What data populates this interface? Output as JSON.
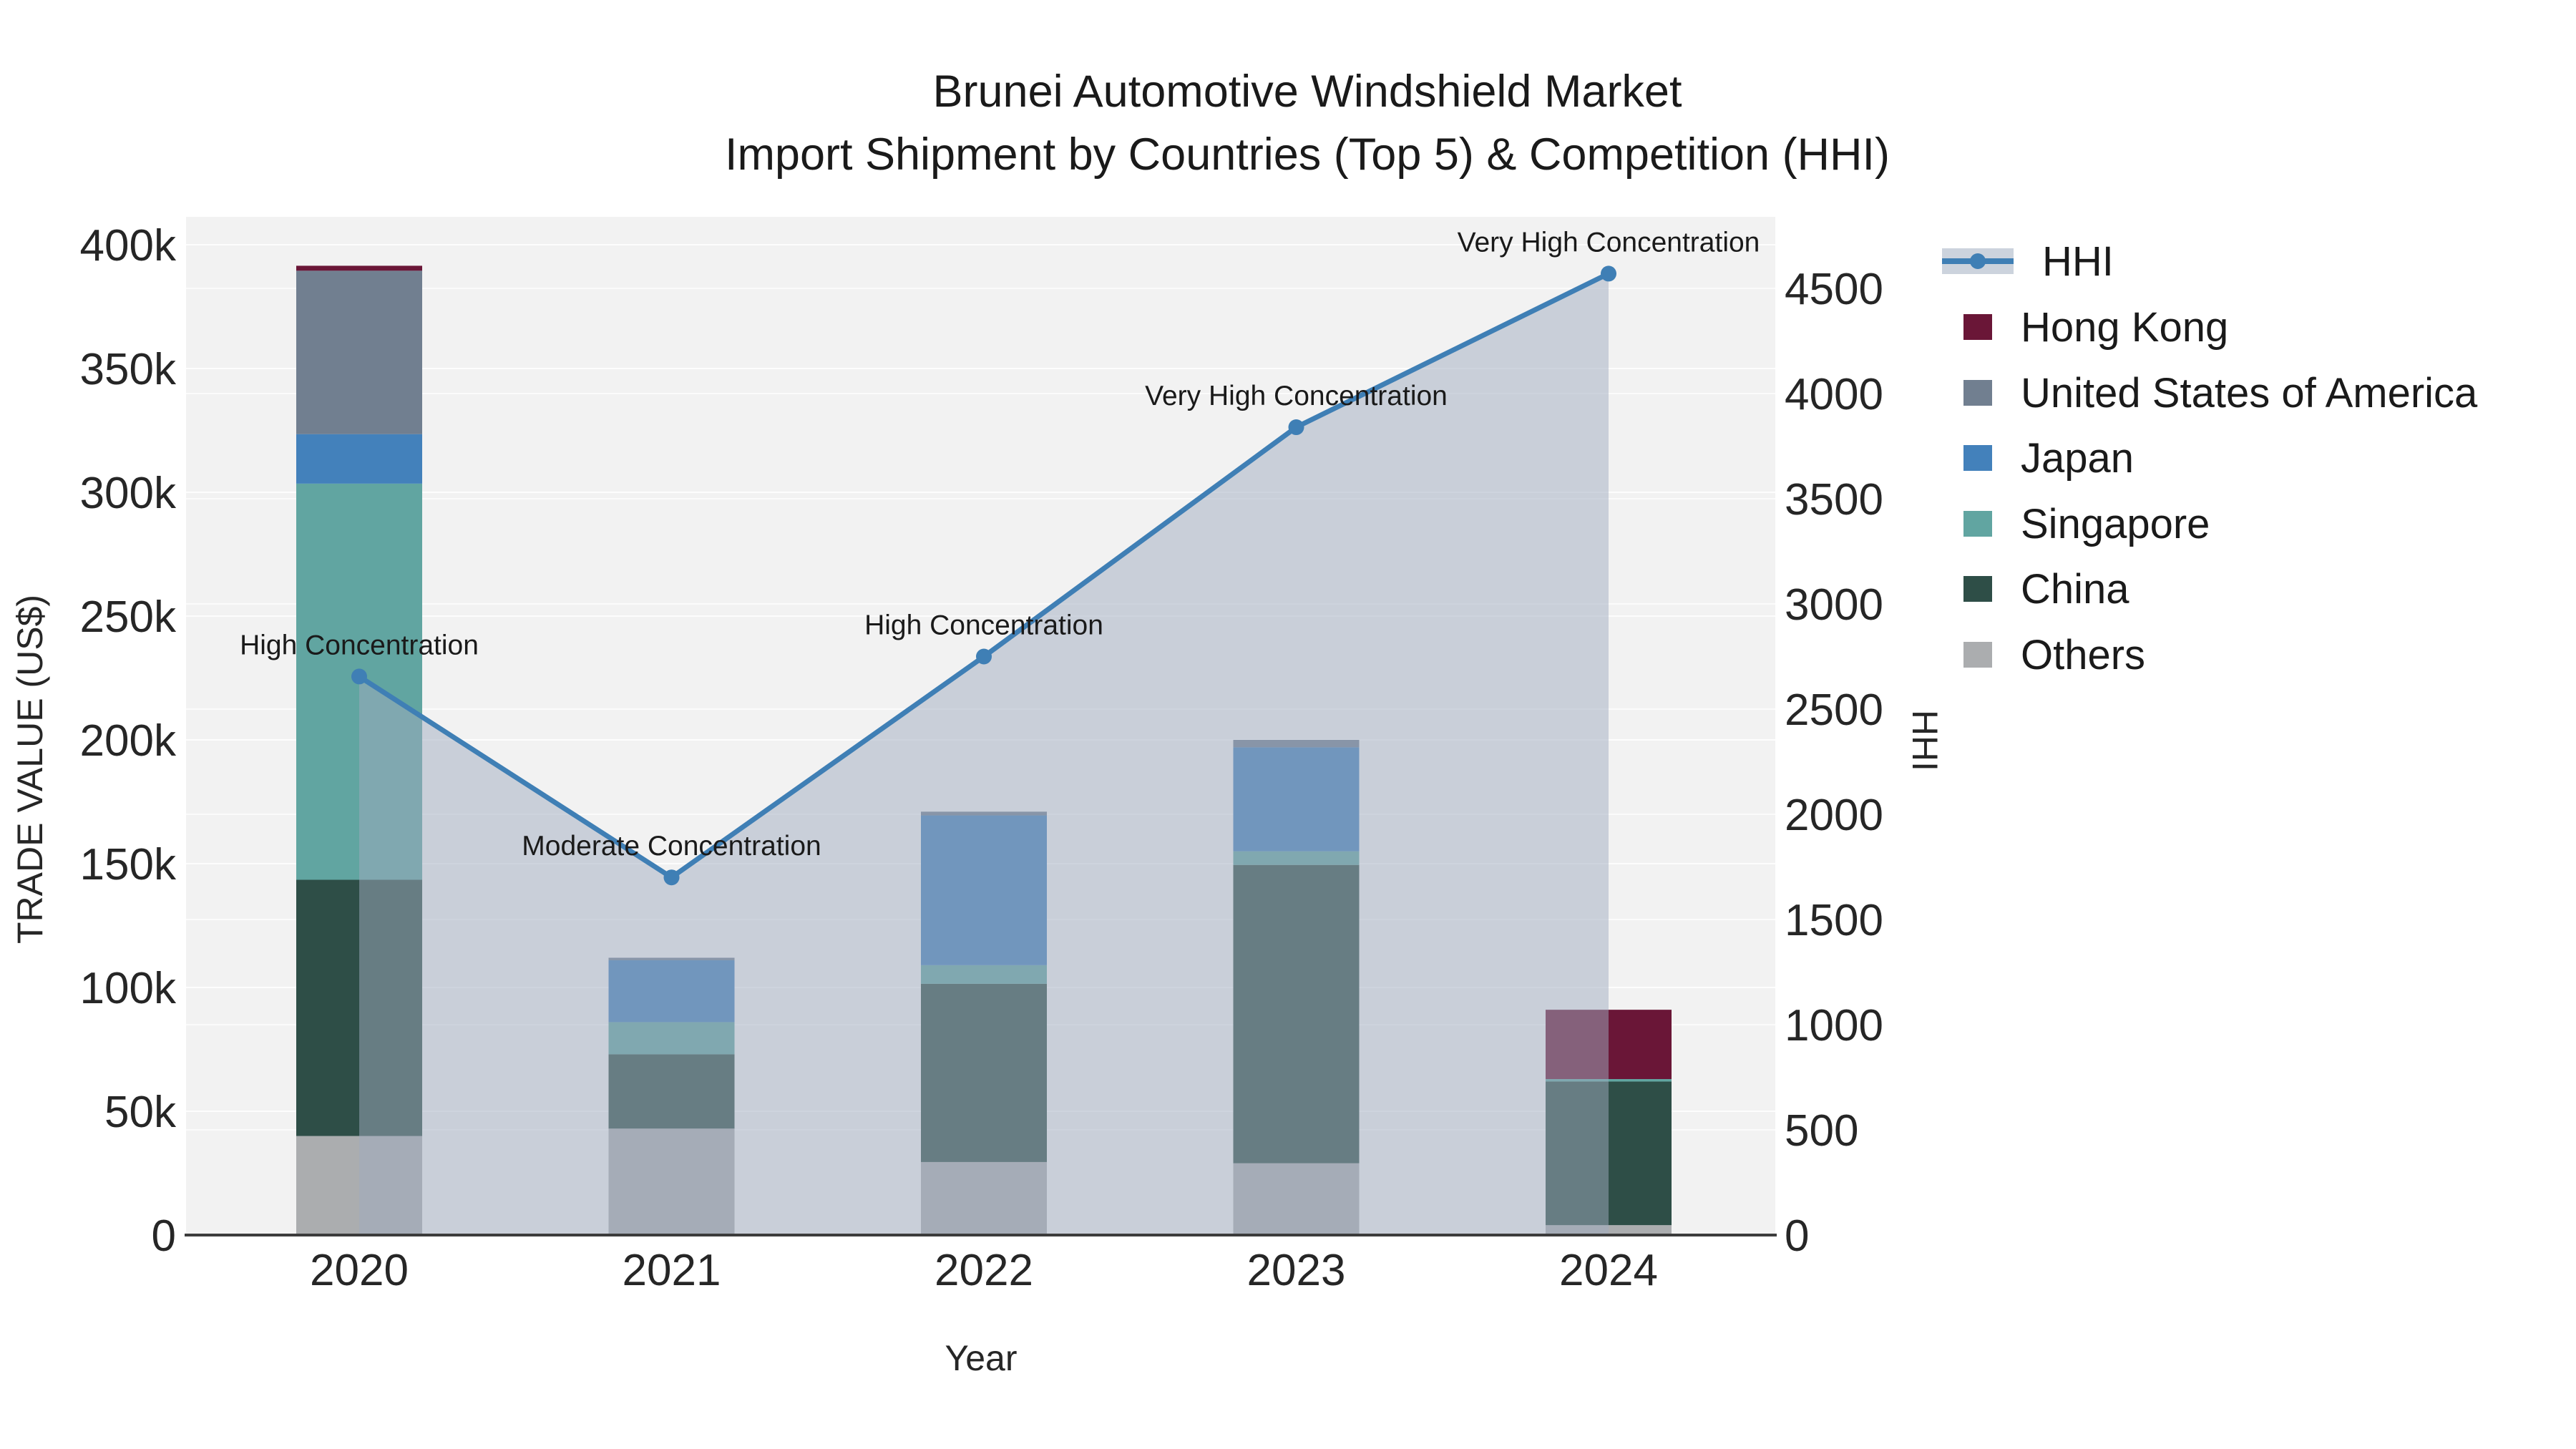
{
  "title": {
    "line1": "Brunei Automotive Windshield Market",
    "line2": "Import Shipment by Countries (Top 5) & Competition (HHI)"
  },
  "axes": {
    "x": {
      "title": "Year",
      "tick_labels": [
        "2020",
        "2021",
        "2022",
        "2023",
        "2024"
      ]
    },
    "y_left": {
      "title": "TRADE VALUE (US$)",
      "tick_labels": [
        "0",
        "50k",
        "100k",
        "150k",
        "200k",
        "250k",
        "300k",
        "350k",
        "400k"
      ]
    },
    "y_right": {
      "title": "HHI",
      "tick_labels": [
        "0",
        "500",
        "1000",
        "1500",
        "2000",
        "2500",
        "3000",
        "3500",
        "4000",
        "4500"
      ]
    }
  },
  "legend": {
    "items": [
      {
        "label": "HHI",
        "type": "line",
        "color": "#3f7fb5",
        "band_color": "#ccd3dd"
      },
      {
        "label": "Hong Kong",
        "type": "box",
        "color": "#6a1637"
      },
      {
        "label": "United States of America",
        "type": "box",
        "color": "#717f90"
      },
      {
        "label": "Japan",
        "type": "box",
        "color": "#4381bb"
      },
      {
        "label": "Singapore",
        "type": "box",
        "color": "#61a5a1"
      },
      {
        "label": "China",
        "type": "box",
        "color": "#2e4e47"
      },
      {
        "label": "Others",
        "type": "box",
        "color": "#abadaf"
      }
    ]
  },
  "chart_data": {
    "type": "bar+line",
    "title": "Brunei Automotive Windshield Market — Import Shipment by Countries (Top 5) & Competition (HHI)",
    "categories": [
      "2020",
      "2021",
      "2022",
      "2023",
      "2024"
    ],
    "bar_value_unit": "US$ thousands",
    "stack_order_bottom_to_top": [
      "Others",
      "China",
      "Singapore",
      "Japan",
      "United States of America",
      "Hong Kong"
    ],
    "series": [
      {
        "name": "Others",
        "color": "#abadaf",
        "values_k_usd": [
          40,
          43,
          29.5,
          29,
          4
        ]
      },
      {
        "name": "China",
        "color": "#2e4e47",
        "values_k_usd": [
          103.5,
          30,
          72,
          120.5,
          58
        ]
      },
      {
        "name": "Singapore",
        "color": "#61a5a1",
        "values_k_usd": [
          160,
          13,
          7.5,
          5.5,
          1
        ]
      },
      {
        "name": "Japan",
        "color": "#4381bb",
        "values_k_usd": [
          20,
          25,
          60.5,
          42,
          0
        ]
      },
      {
        "name": "United States of America",
        "color": "#717f90",
        "values_k_usd": [
          66,
          1,
          1.5,
          3,
          0
        ]
      },
      {
        "name": "Hong Kong",
        "color": "#6a1637",
        "values_k_usd": [
          2,
          0,
          0,
          0,
          28
        ]
      }
    ],
    "line_series": {
      "name": "HHI",
      "color": "#3f7fb5",
      "area_fill_color": "rgba(160,172,192,0.5)",
      "values": [
        2655,
        1700,
        2750,
        3840,
        4570
      ]
    },
    "annotations": [
      {
        "category": "2020",
        "text": "High Concentration"
      },
      {
        "category": "2021",
        "text": "Moderate Concentration"
      },
      {
        "category": "2022",
        "text": "High Concentration"
      },
      {
        "category": "2023",
        "text": "Very High Concentration"
      },
      {
        "category": "2024",
        "text": "Very High Concentration"
      }
    ],
    "xlabel": "Year",
    "ylabel_left": "TRADE VALUE (US$)",
    "ylabel_right": "HHI",
    "ylim_left": [
      0,
      411000
    ],
    "ylim_right": [
      0,
      4840
    ],
    "grid": true,
    "legend_position": "right",
    "plot_background": "#f2f2f2"
  }
}
